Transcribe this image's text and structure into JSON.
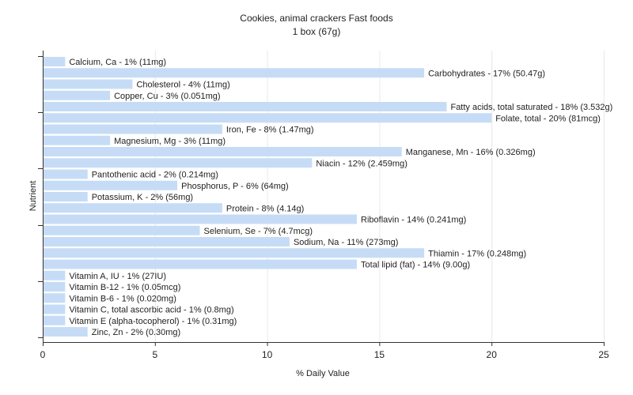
{
  "chart_data": {
    "type": "bar",
    "orientation": "horizontal",
    "title": "Cookies, animal crackers Fast foods",
    "subtitle": "1 box (67g)",
    "xlabel": "% Daily Value",
    "ylabel": "Nutrient",
    "xlim": [
      0,
      25
    ],
    "xticks": [
      0,
      5,
      10,
      15,
      20,
      25
    ],
    "grid": true,
    "bar_color": "#c6dcf6",
    "categories": [
      "Calcium, Ca",
      "Carbohydrates",
      "Cholesterol",
      "Copper, Cu",
      "Fatty acids, total saturated",
      "Folate, total",
      "Iron, Fe",
      "Magnesium, Mg",
      "Manganese, Mn",
      "Niacin",
      "Pantothenic acid",
      "Phosphorus, P",
      "Potassium, K",
      "Protein",
      "Riboflavin",
      "Selenium, Se",
      "Sodium, Na",
      "Thiamin",
      "Total lipid (fat)",
      "Vitamin A, IU",
      "Vitamin B-12",
      "Vitamin B-6",
      "Vitamin C, total ascorbic acid",
      "Vitamin E (alpha-tocopherol)",
      "Zinc, Zn"
    ],
    "values": [
      1,
      17,
      4,
      3,
      18,
      20,
      8,
      3,
      16,
      12,
      2,
      6,
      2,
      8,
      14,
      7,
      11,
      17,
      14,
      1,
      1,
      1,
      1,
      1,
      2
    ],
    "labels": [
      "Calcium, Ca - 1% (11mg)",
      "Carbohydrates - 17% (50.47g)",
      "Cholesterol - 4% (11mg)",
      "Copper, Cu - 3% (0.051mg)",
      "Fatty acids, total saturated - 18% (3.532g)",
      "Folate, total - 20% (81mcg)",
      "Iron, Fe - 8% (1.47mg)",
      "Magnesium, Mg - 3% (11mg)",
      "Manganese, Mn - 16% (0.326mg)",
      "Niacin - 12% (2.459mg)",
      "Pantothenic acid - 2% (0.214mg)",
      "Phosphorus, P - 6% (64mg)",
      "Potassium, K - 2% (56mg)",
      "Protein - 8% (4.14g)",
      "Riboflavin - 14% (0.241mg)",
      "Selenium, Se - 7% (4.7mcg)",
      "Sodium, Na - 11% (273mg)",
      "Thiamin - 17% (0.248mg)",
      "Total lipid (fat) - 14% (9.00g)",
      "Vitamin A, IU - 1% (27IU)",
      "Vitamin B-12 - 1% (0.05mcg)",
      "Vitamin B-6 - 1% (0.020mg)",
      "Vitamin C, total ascorbic acid - 1% (0.8mg)",
      "Vitamin E (alpha-tocopherol) - 1% (0.31mg)",
      "Zinc, Zn - 2% (0.30mg)"
    ]
  }
}
